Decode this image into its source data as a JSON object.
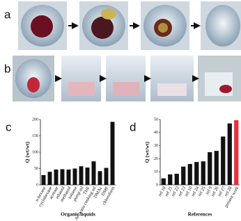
{
  "figure": {
    "panels": [
      "a",
      "b"
    ]
  },
  "chart_data": [
    {
      "type": "bar",
      "panel": "c",
      "ylabel": "Q (wt/wt)",
      "xlabel": "Organic liquids",
      "categories": [
        "n-hexane",
        "cyclohexane",
        "acetone",
        "ethanol",
        "methanol",
        "toluene",
        "pump oil",
        "THF",
        "Arowana cooking oil",
        "DMAc",
        "DMF",
        "chloroform"
      ],
      "values": [
        30,
        40,
        47,
        48,
        47,
        50,
        57,
        53,
        72,
        42,
        52,
        193
      ],
      "colors": [
        "#111111",
        "#111111",
        "#111111",
        "#111111",
        "#111111",
        "#111111",
        "#111111",
        "#111111",
        "#111111",
        "#111111",
        "#111111",
        "#111111"
      ],
      "ylim": [
        0,
        200
      ],
      "yticks": [
        0,
        50,
        100,
        150,
        200
      ]
    },
    {
      "type": "bar",
      "panel": "d",
      "ylabel": "Q (wt/wt)",
      "xlabel": "References",
      "categories": [
        "ref 18",
        "ref 21",
        "ref 22",
        "ref 23",
        "ref 10",
        "ref 24",
        "ref 25",
        "ref 9",
        "ref 26",
        "ref 27",
        "ref 28",
        "present work"
      ],
      "values": [
        5,
        8,
        8.5,
        14,
        16,
        17.5,
        18,
        25,
        26,
        37,
        47,
        49.5
      ],
      "colors": [
        "#111111",
        "#111111",
        "#111111",
        "#111111",
        "#111111",
        "#111111",
        "#111111",
        "#111111",
        "#111111",
        "#111111",
        "#111111",
        "#e8303a"
      ],
      "ylim": [
        0,
        50
      ],
      "yticks": [
        0,
        10,
        20,
        30,
        40,
        50
      ]
    }
  ]
}
